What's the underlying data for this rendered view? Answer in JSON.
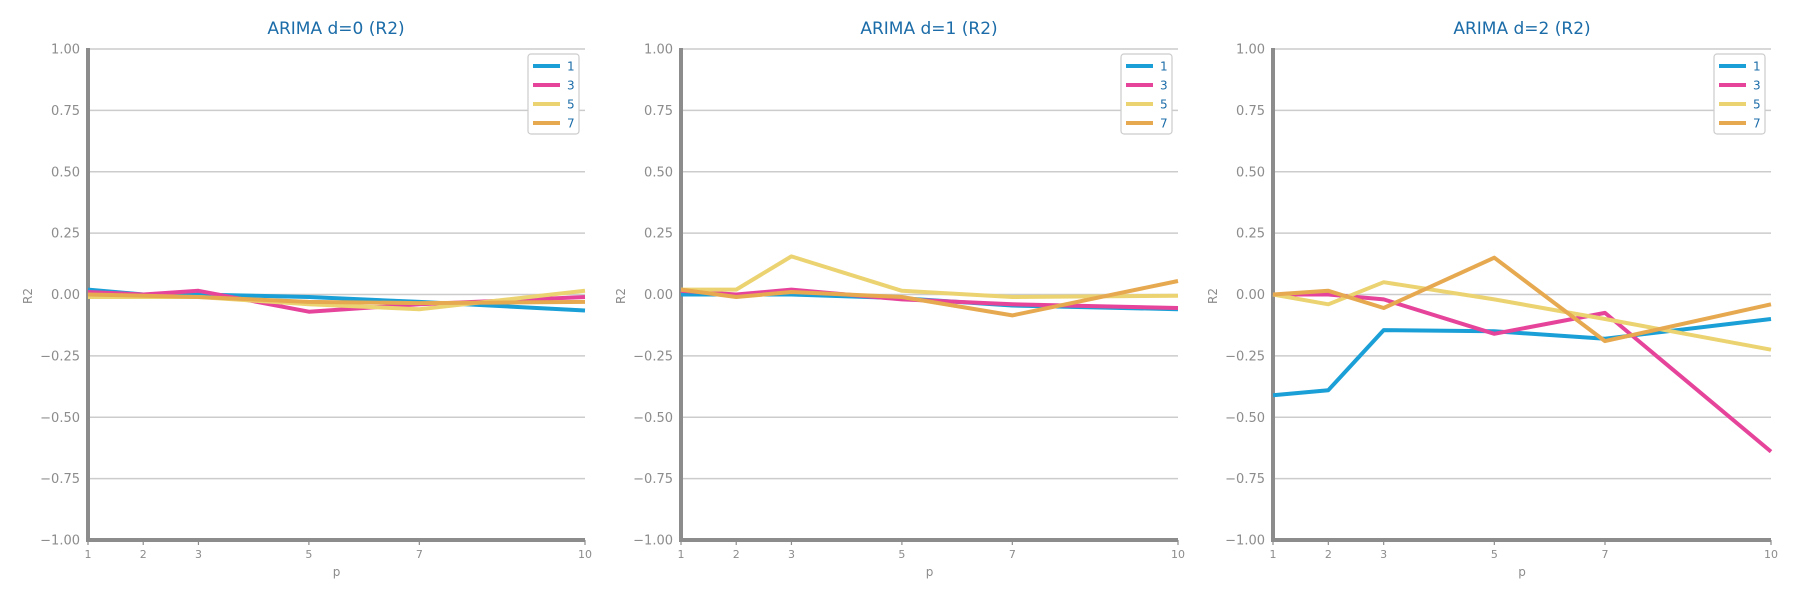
{
  "chart_data": [
    {
      "type": "line",
      "title": "ARIMA d=0 (R2)",
      "xlabel": "p",
      "ylabel": "R2",
      "x": [
        1,
        2,
        3,
        5,
        7,
        10
      ],
      "x_ticks": [
        "1",
        "2",
        "3",
        "5",
        "7",
        "10"
      ],
      "ylim": [
        -1.0,
        1.0
      ],
      "y_ticks": [
        "1.00",
        "0.75",
        "0.50",
        "0.25",
        "0.00",
        "−0.25",
        "−0.50",
        "−0.75",
        "−1.00"
      ],
      "grid": true,
      "legend": "top-right",
      "series": [
        {
          "name": "1",
          "color": "#1a9fd6",
          "values": [
            0.02,
            0.0,
            0.0,
            -0.01,
            -0.03,
            -0.065
          ]
        },
        {
          "name": "3",
          "color": "#e6449b",
          "values": [
            0.01,
            0.0,
            0.015,
            -0.07,
            -0.04,
            -0.01
          ]
        },
        {
          "name": "5",
          "color": "#ecd371",
          "values": [
            -0.01,
            -0.01,
            -0.01,
            -0.04,
            -0.06,
            0.015
          ]
        },
        {
          "name": "7",
          "color": "#e6a950",
          "values": [
            0.0,
            -0.005,
            -0.01,
            -0.03,
            -0.035,
            -0.03
          ]
        }
      ]
    },
    {
      "type": "line",
      "title": "ARIMA d=1 (R2)",
      "xlabel": "p",
      "ylabel": "R2",
      "x": [
        1,
        2,
        3,
        5,
        7,
        10
      ],
      "x_ticks": [
        "1",
        "2",
        "3",
        "5",
        "7",
        "10"
      ],
      "ylim": [
        -1.0,
        1.0
      ],
      "y_ticks": [
        "1.00",
        "0.75",
        "0.50",
        "0.25",
        "0.00",
        "−0.25",
        "−0.50",
        "−0.75",
        "−1.00"
      ],
      "grid": true,
      "legend": "top-right",
      "series": [
        {
          "name": "1",
          "color": "#1a9fd6",
          "values": [
            0.0,
            0.0,
            0.0,
            -0.015,
            -0.045,
            -0.06
          ]
        },
        {
          "name": "3",
          "color": "#e6449b",
          "values": [
            0.015,
            0.0,
            0.02,
            -0.02,
            -0.04,
            -0.055
          ]
        },
        {
          "name": "5",
          "color": "#ecd371",
          "values": [
            0.02,
            0.02,
            0.155,
            0.015,
            -0.01,
            -0.005
          ]
        },
        {
          "name": "7",
          "color": "#e6a950",
          "values": [
            0.02,
            -0.01,
            0.01,
            -0.01,
            -0.085,
            0.055
          ]
        }
      ]
    },
    {
      "type": "line",
      "title": "ARIMA d=2 (R2)",
      "xlabel": "p",
      "ylabel": "R2",
      "x": [
        1,
        2,
        3,
        5,
        7,
        10
      ],
      "x_ticks": [
        "1",
        "2",
        "3",
        "5",
        "7",
        "10"
      ],
      "ylim": [
        -1.0,
        1.0
      ],
      "y_ticks": [
        "1.00",
        "0.75",
        "0.50",
        "0.25",
        "0.00",
        "−0.25",
        "−0.50",
        "−0.75",
        "−1.00"
      ],
      "grid": true,
      "legend": "top-right",
      "series": [
        {
          "name": "1",
          "color": "#1a9fd6",
          "values": [
            -0.41,
            -0.39,
            -0.145,
            -0.15,
            -0.18,
            -0.1
          ]
        },
        {
          "name": "3",
          "color": "#e6449b",
          "values": [
            0.0,
            0.0,
            -0.02,
            -0.16,
            -0.075,
            -0.64
          ]
        },
        {
          "name": "5",
          "color": "#ecd371",
          "values": [
            0.0,
            -0.04,
            0.05,
            -0.02,
            -0.1,
            -0.225
          ]
        },
        {
          "name": "7",
          "color": "#e6a950",
          "values": [
            0.0,
            0.015,
            -0.055,
            0.15,
            -0.19,
            -0.04
          ]
        }
      ]
    }
  ]
}
